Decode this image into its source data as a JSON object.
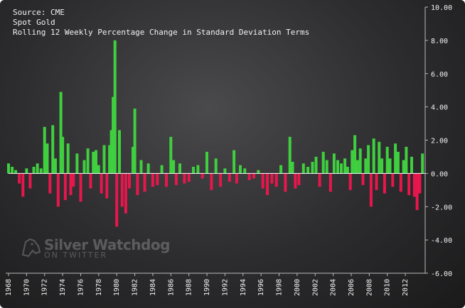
{
  "header": {
    "source": "Source: CME",
    "instrument": "Spot Gold",
    "title": "Rolling 12 Weekly Percentage Change in Standard Deviation Terms"
  },
  "watermark": {
    "brand": "Silver Watchdog",
    "sub": "ON TWITTER",
    "icon": "dog-head-icon"
  },
  "colors": {
    "positive": "#3fcf3f",
    "negative": "#e8164c",
    "zero_line": "#ffffff",
    "axis": "#bbbbbb",
    "text": "#f2f2f2"
  },
  "chart_data": {
    "type": "bar",
    "title": "Rolling 12 Weekly Percentage Change in Standard Deviation Terms",
    "xlabel": "",
    "ylabel": "",
    "xlim": [
      1968,
      2014.2
    ],
    "ylim": [
      -6,
      10
    ],
    "grid": false,
    "y_ticks": [
      "10.00",
      "8.00",
      "6.00",
      "4.00",
      "2.00",
      "0.00",
      "-2.00",
      "-4.00",
      "-6.00"
    ],
    "y_tick_values": [
      10,
      8,
      6,
      4,
      2,
      0,
      -2,
      -4,
      -6
    ],
    "x_ticks": [
      "1968",
      "1970",
      "1972",
      "1974",
      "1976",
      "1978",
      "1980",
      "1982",
      "1984",
      "1986",
      "1988",
      "1990",
      "1992",
      "1994",
      "1996",
      "1998",
      "2000",
      "2002",
      "2004",
      "2006",
      "2008",
      "2010",
      "2012"
    ],
    "x_tick_values": [
      1968,
      1970,
      1972,
      1974,
      1976,
      1978,
      1980,
      1982,
      1984,
      1986,
      1988,
      1990,
      1992,
      1994,
      1996,
      1998,
      2000,
      2002,
      2004,
      2006,
      2008,
      2010,
      2012
    ],
    "series": [
      {
        "x": [
          1968.0,
          1968.4,
          1968.8,
          1969.2,
          1969.6,
          1970.0,
          1970.4,
          1970.8,
          1971.2,
          1971.6,
          1972.0,
          1972.3,
          1972.6,
          1972.9,
          1973.2,
          1973.5,
          1973.8,
          1974.0,
          1974.3,
          1974.6,
          1974.9,
          1975.2,
          1975.6,
          1976.0,
          1976.4,
          1976.8,
          1977.1,
          1977.4,
          1977.7,
          1978.0,
          1978.3,
          1978.6,
          1978.9,
          1979.2,
          1979.4,
          1979.6,
          1979.8,
          1980.0,
          1980.3,
          1980.6,
          1981.0,
          1981.4,
          1981.8,
          1982.0,
          1982.3,
          1982.7,
          1983.1,
          1983.5,
          1984.0,
          1984.5,
          1985.0,
          1985.5,
          1986.0,
          1986.3,
          1986.6,
          1987.0,
          1987.5,
          1988.0,
          1988.5,
          1989.0,
          1989.5,
          1990.0,
          1990.5,
          1991.0,
          1991.5,
          1992.0,
          1992.5,
          1993.0,
          1993.3,
          1993.7,
          1994.2,
          1994.7,
          1995.2,
          1995.7,
          1996.2,
          1996.7,
          1997.2,
          1997.7,
          1998.2,
          1998.7,
          1999.2,
          1999.5,
          1999.8,
          2000.2,
          2000.7,
          2001.2,
          2001.7,
          2002.1,
          2002.5,
          2002.9,
          2003.3,
          2003.7,
          2004.1,
          2004.5,
          2004.9,
          2005.3,
          2005.6,
          2005.9,
          2006.1,
          2006.4,
          2006.7,
          2007.0,
          2007.3,
          2007.6,
          2007.9,
          2008.2,
          2008.5,
          2008.8,
          2009.1,
          2009.4,
          2009.7,
          2010.0,
          2010.3,
          2010.6,
          2010.9,
          2011.2,
          2011.5,
          2011.8,
          2012.1,
          2012.4,
          2012.7,
          2013.0,
          2013.3,
          2013.6,
          2013.9
        ],
        "values": [
          0.6,
          0.4,
          0.2,
          -0.6,
          -1.4,
          0.3,
          -0.9,
          0.4,
          0.6,
          0.3,
          2.8,
          1.8,
          -1.2,
          2.9,
          0.9,
          -2.0,
          4.9,
          2.2,
          -1.6,
          1.8,
          -1.3,
          -0.8,
          1.2,
          -1.7,
          0.8,
          1.5,
          -0.9,
          1.3,
          1.4,
          0.5,
          -1.2,
          1.7,
          -1.5,
          1.7,
          2.6,
          4.6,
          8.0,
          -3.2,
          2.6,
          -2.0,
          -2.4,
          -0.9,
          1.6,
          3.9,
          -1.3,
          0.8,
          -1.1,
          0.6,
          -0.8,
          -0.7,
          0.5,
          -0.8,
          2.2,
          0.8,
          -0.7,
          0.6,
          -0.6,
          -0.5,
          0.4,
          0.5,
          -0.3,
          1.3,
          -1.0,
          0.9,
          -0.8,
          0.3,
          -0.5,
          1.4,
          -0.6,
          0.5,
          0.3,
          -0.4,
          -0.3,
          0.2,
          -0.9,
          -1.3,
          -0.6,
          -0.8,
          0.5,
          -1.1,
          2.2,
          0.7,
          -0.9,
          -0.7,
          0.6,
          0.4,
          0.7,
          1.0,
          -0.8,
          1.3,
          0.8,
          -1.1,
          1.2,
          0.8,
          0.6,
          0.9,
          0.4,
          -1.0,
          1.4,
          2.3,
          0.8,
          1.5,
          -0.7,
          0.9,
          1.7,
          -2.0,
          2.1,
          -1.0,
          1.9,
          0.9,
          -1.2,
          1.6,
          0.9,
          -0.8,
          1.8,
          1.3,
          -1.1,
          0.8,
          1.6,
          -1.3,
          1.0,
          -1.4,
          -2.2,
          -1.2,
          1.2
        ]
      }
    ]
  }
}
